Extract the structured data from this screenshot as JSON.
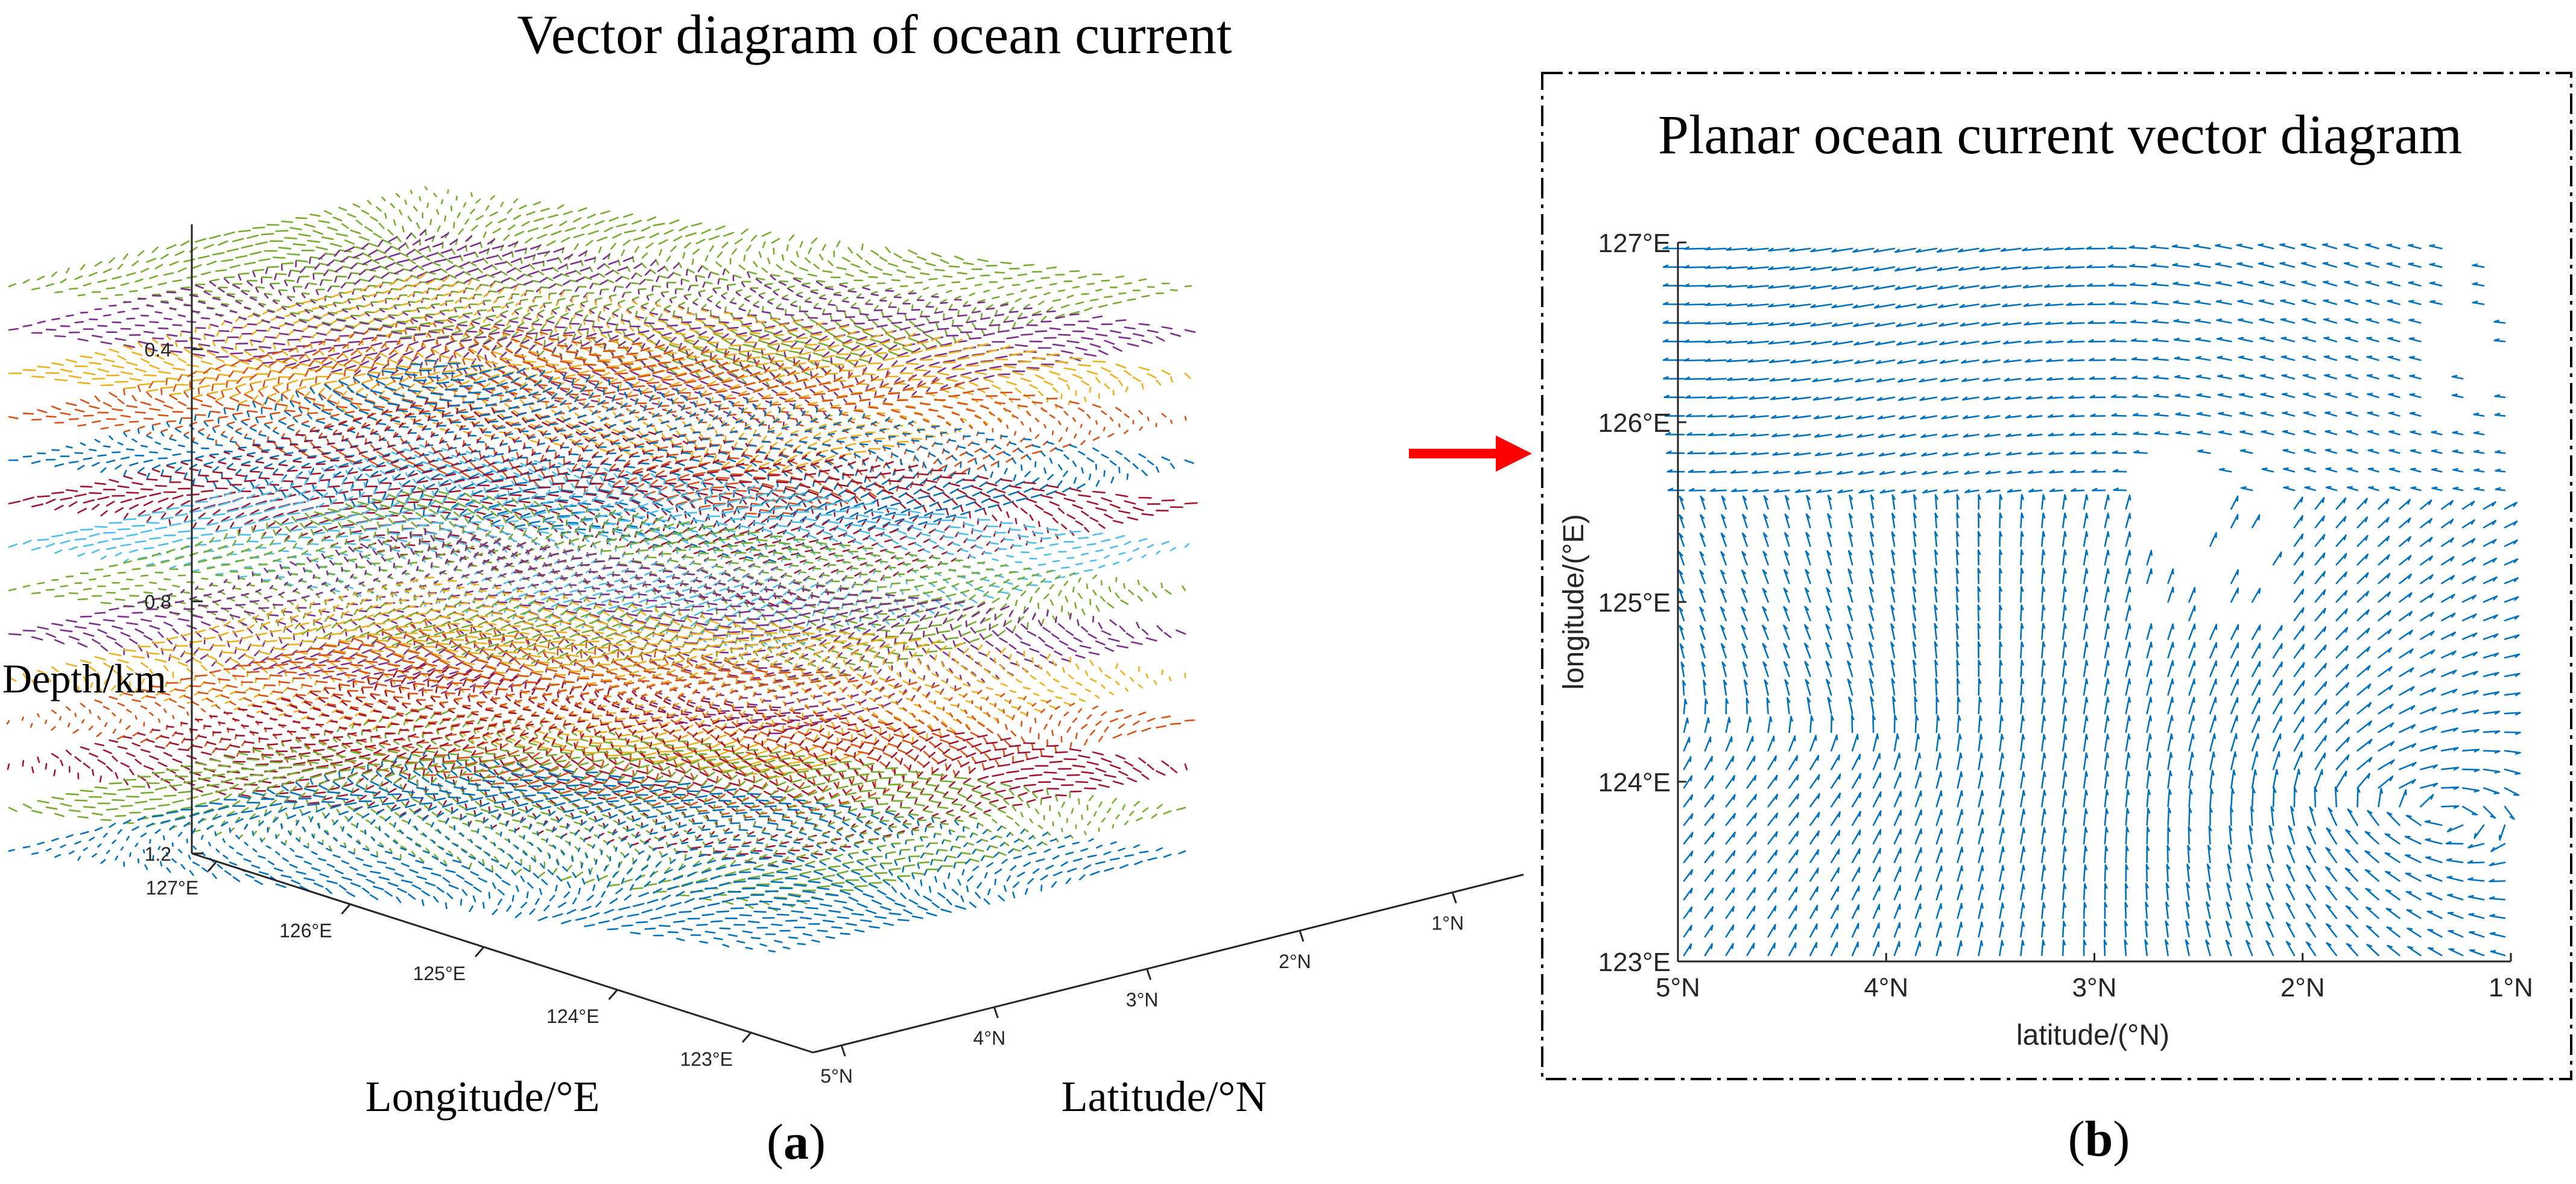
{
  "figure": {
    "panel_a_title": "Vector diagram of ocean current",
    "panel_b_title": "Planar ocean current vector diagram",
    "panel_a_label_prefix": "(",
    "panel_a_label_letter": "a",
    "panel_a_label_suffix": ")",
    "panel_b_label_prefix": "(",
    "panel_b_label_letter": "b",
    "panel_b_label_suffix": ")"
  },
  "chart_data": [
    {
      "type": "quiver3d",
      "title": "Vector diagram of ocean current",
      "zlabel": "Depth/km",
      "xlabel": "Longitude/°E",
      "ylabel": "Latitude/°N",
      "depth_ticks": [
        "0.4",
        "0.8",
        "1.2"
      ],
      "longitude_ticks": [
        "127°E",
        "126°E",
        "125°E",
        "124°E",
        "123°E"
      ],
      "latitude_ticks": [
        "1°N",
        "2°N",
        "3°N",
        "4°N",
        "5°N"
      ],
      "depth_range_km": [
        0.2,
        1.2
      ],
      "layer_count": 14,
      "layer_colors": [
        "#77ac30",
        "#7e2f8e",
        "#edb120",
        "#d95319",
        "#0072bd",
        "#a2142f",
        "#4dbeee",
        "#77ac30",
        "#7e2f8e",
        "#edb120",
        "#d95319",
        "#a2142f",
        "#77ac30",
        "#0072bd"
      ],
      "highlighted_layer_index": 4
    },
    {
      "type": "quiver",
      "title": "Planar ocean current vector diagram",
      "xlabel": "latitude/(°N)",
      "ylabel": "longitude/(°E)",
      "x_ticks": [
        "5°N",
        "4°N",
        "3°N",
        "2°N",
        "1°N"
      ],
      "y_ticks": [
        "127°E",
        "126°E",
        "125°E",
        "124°E",
        "123°E"
      ],
      "x_range_degN": [
        5,
        1
      ],
      "y_range_degE": [
        123,
        127
      ],
      "arrow_color": "#0072bd",
      "grid_cols": 40,
      "grid_rows": 39
    }
  ],
  "annotation": {
    "arrow_color": "#ff0000"
  }
}
